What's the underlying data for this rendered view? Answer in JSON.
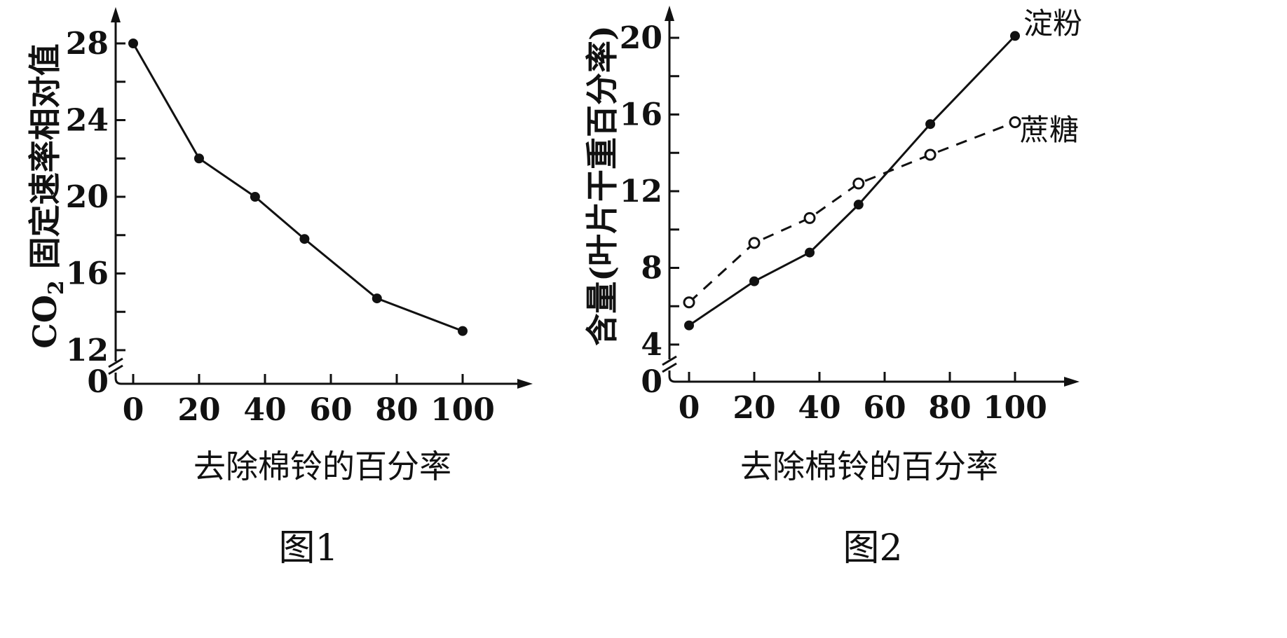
{
  "chart_data": [
    {
      "type": "line",
      "title": "",
      "caption": "图1",
      "xlabel": "去除棉铃的百分率",
      "ylabel_main": "CO",
      "ylabel_sub": "2",
      "ylabel_rest": " 固定速率相对值",
      "x_ticks": [
        0,
        20,
        40,
        60,
        80,
        100
      ],
      "y_ticks": [
        12,
        16,
        20,
        24,
        28
      ],
      "y_zero_label": "0",
      "xlim": [
        0,
        120
      ],
      "ylim": [
        12,
        30
      ],
      "axis_break": true,
      "grid": false,
      "series": [
        {
          "style": "solid-filled",
          "x": [
            0,
            20,
            37,
            52,
            74,
            100
          ],
          "y": [
            28,
            22,
            20,
            17.8,
            14.7,
            13
          ]
        }
      ]
    },
    {
      "type": "line",
      "title": "",
      "caption": "图2",
      "xlabel": "去除棉铃的百分率",
      "ylabel": "含量(叶片干重百分率)",
      "x_ticks": [
        0,
        20,
        40,
        60,
        80,
        100
      ],
      "y_ticks": [
        4,
        8,
        12,
        16,
        20
      ],
      "y_zero_label": "0",
      "xlim": [
        0,
        120
      ],
      "ylim": [
        3.5,
        21.5
      ],
      "axis_break": true,
      "grid": false,
      "series": [
        {
          "name": "淀粉",
          "style": "solid-filled",
          "x": [
            0,
            20,
            37,
            52,
            74,
            100
          ],
          "y": [
            5,
            7.3,
            8.8,
            11.3,
            15.5,
            20.1
          ]
        },
        {
          "name": "蔗糖",
          "style": "dashed-open",
          "x": [
            0,
            20,
            37,
            52,
            74,
            100
          ],
          "y": [
            6.2,
            9.3,
            10.6,
            12.4,
            13.9,
            15.6
          ]
        }
      ]
    }
  ]
}
